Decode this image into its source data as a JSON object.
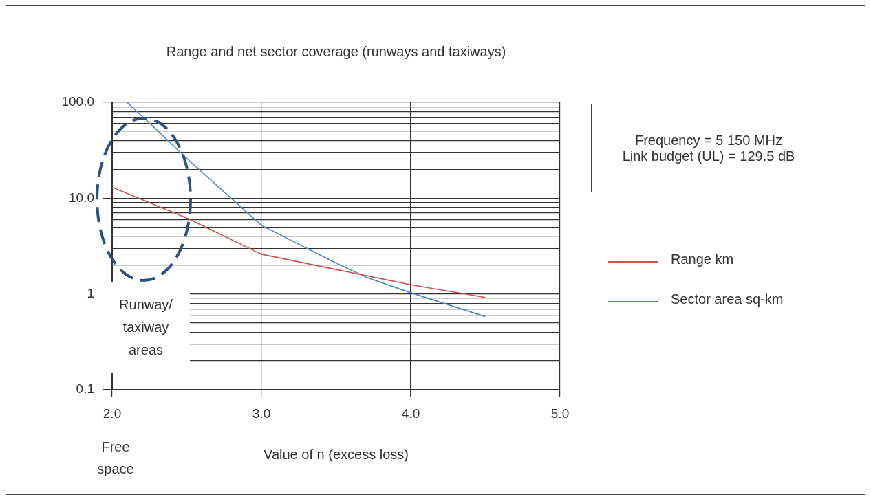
{
  "chart_data": {
    "type": "line",
    "title": "Range and net sector coverage (runways and taxiways)",
    "xlabel": "Value of n (excess loss)",
    "log": "y",
    "grid": true,
    "legend": "right",
    "marker": "none",
    "line_style": "solid",
    "xlim": [
      2.0,
      5.0
    ],
    "xticks": [
      {
        "value": 2,
        "label": "2.0"
      },
      {
        "value": 3,
        "label": "3.0"
      },
      {
        "value": 4,
        "label": "4.0"
      },
      {
        "value": 5,
        "label": "5.0"
      }
    ],
    "ylim": [
      0.1,
      100
    ],
    "yticks": [
      {
        "value": 0.1,
        "label": "0.1"
      },
      {
        "value": 0.2,
        "label": null
      },
      {
        "value": 0.3,
        "label": null
      },
      {
        "value": 0.4,
        "label": null
      },
      {
        "value": 0.5,
        "label": null
      },
      {
        "value": 0.6,
        "label": null
      },
      {
        "value": 0.7,
        "label": null
      },
      {
        "value": 0.8,
        "label": null
      },
      {
        "value": 0.9,
        "label": null
      },
      {
        "value": 1,
        "label": "1"
      },
      {
        "value": 2,
        "label": null
      },
      {
        "value": 3,
        "label": null
      },
      {
        "value": 4,
        "label": null
      },
      {
        "value": 5,
        "label": null
      },
      {
        "value": 6,
        "label": null
      },
      {
        "value": 7,
        "label": null
      },
      {
        "value": 8,
        "label": null
      },
      {
        "value": 9,
        "label": null
      },
      {
        "value": 10,
        "label": "10.0"
      },
      {
        "value": 20,
        "label": null
      },
      {
        "value": 30,
        "label": null
      },
      {
        "value": 40,
        "label": null
      },
      {
        "value": 50,
        "label": null
      },
      {
        "value": 60,
        "label": null
      },
      {
        "value": 70,
        "label": null
      },
      {
        "value": 80,
        "label": null
      },
      {
        "value": 90,
        "label": null
      },
      {
        "value": 100,
        "label": "100.0"
      }
    ],
    "series": [
      {
        "name": "Range km",
        "color": "#d0504a",
        "x": [
          2.0,
          2.5,
          3.0,
          3.5,
          4.0,
          4.5
        ],
        "values": [
          13,
          6.2,
          2.6,
          1.8,
          1.25,
          0.92
        ]
      },
      {
        "name": "Sector area sq-km",
        "color": "#4a86c8",
        "x": [
          2.1,
          2.25,
          2.5,
          3.0,
          3.5,
          3.7,
          4.0,
          4.5
        ],
        "values": [
          100,
          61,
          26,
          5.2,
          2.1,
          1.5,
          1.03,
          0.58
        ]
      }
    ],
    "annotations": [
      "Frequency = 5 150 MHz\nLink budget (UL) = 129.5 dB",
      "Runway/\ntaxiway\nareas",
      "Free\nspace"
    ]
  }
}
